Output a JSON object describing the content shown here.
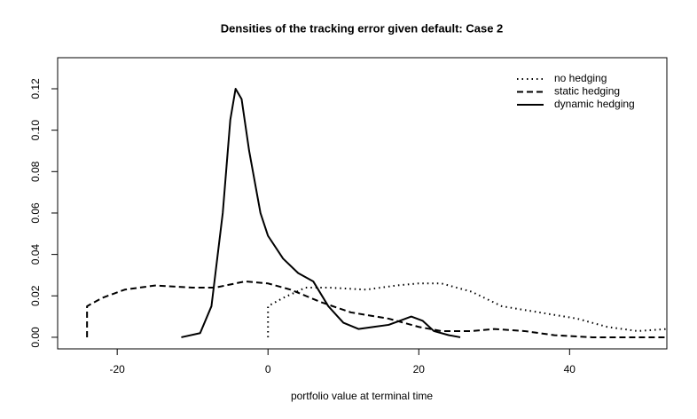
{
  "chart_data": {
    "type": "line",
    "title": "Densities of the tracking error given default: Case 2",
    "x_label": "portfolio value at terminal time",
    "xlim": [
      -27.9,
      52.9
    ],
    "ylim": [
      -0.0056,
      0.135
    ],
    "xticks": [
      -20,
      0,
      20,
      40
    ],
    "yticks": [
      {
        "value": 0,
        "label": "0.00"
      },
      {
        "value": 0.02,
        "label": "0.02"
      },
      {
        "value": 0.04,
        "label": "0.04"
      },
      {
        "value": 0.06,
        "label": "0.06"
      },
      {
        "value": 0.08,
        "label": "0.08"
      },
      {
        "value": 0.1,
        "label": "0.10"
      },
      {
        "value": 0.12,
        "label": "0.12"
      }
    ],
    "legend": "top-right",
    "series": [
      {
        "name": "no hedging",
        "color": "#000000",
        "dash": "dotted",
        "x": [
          0,
          0,
          2,
          5,
          8,
          13,
          17,
          20,
          23,
          27,
          31,
          36,
          41,
          45,
          49,
          52.9
        ],
        "values": [
          0,
          0.015,
          0.019,
          0.024,
          0.024,
          0.023,
          0.025,
          0.026,
          0.026,
          0.022,
          0.015,
          0.012,
          0.009,
          0.005,
          0.003,
          0.004
        ]
      },
      {
        "name": "static hedging",
        "color": "#000000",
        "dash": "dashed",
        "x": [
          -24,
          -24,
          -22,
          -19,
          -15,
          -10,
          -7,
          -3,
          0,
          3,
          7,
          11,
          16,
          20,
          23,
          27,
          30,
          34,
          38,
          43,
          52.9
        ],
        "values": [
          0,
          0.015,
          0.019,
          0.023,
          0.025,
          0.024,
          0.024,
          0.027,
          0.026,
          0.023,
          0.017,
          0.012,
          0.009,
          0.005,
          0.003,
          0.003,
          0.004,
          0.003,
          0.001,
          0,
          0
        ]
      },
      {
        "name": "dynamic hedging",
        "color": "#000000",
        "dash": "solid",
        "x": [
          -11.5,
          -9,
          -7.5,
          -6,
          -5,
          -4.3,
          -3.5,
          -2.5,
          -1,
          0,
          2,
          4,
          6,
          8,
          10,
          12,
          14,
          16,
          17.5,
          19,
          20.5,
          22,
          24,
          25.5
        ],
        "values": [
          0,
          0.002,
          0.015,
          0.06,
          0.105,
          0.12,
          0.115,
          0.09,
          0.06,
          0.049,
          0.038,
          0.031,
          0.027,
          0.015,
          0.007,
          0.004,
          0.005,
          0.006,
          0.008,
          0.01,
          0.008,
          0.003,
          0.001,
          0
        ]
      }
    ]
  }
}
